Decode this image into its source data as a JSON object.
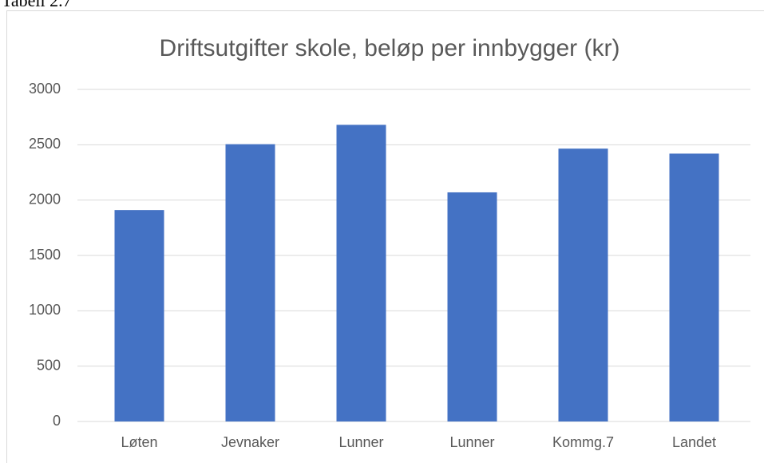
{
  "caption": "Tabell 2.7",
  "chart_data": {
    "type": "bar",
    "title": "Driftsutgifter skole, beløp per innbygger (kr)",
    "categories": [
      "Løten",
      "Jevnaker",
      "Lunner",
      "Lunner",
      "Kommg.7",
      "Landet"
    ],
    "values": [
      1910,
      2505,
      2680,
      2070,
      2465,
      2420
    ],
    "color": "#4472c4",
    "ylim": [
      0,
      3000
    ],
    "yticks": [
      0,
      500,
      1000,
      1500,
      2000,
      2500,
      3000
    ],
    "grid": true
  }
}
